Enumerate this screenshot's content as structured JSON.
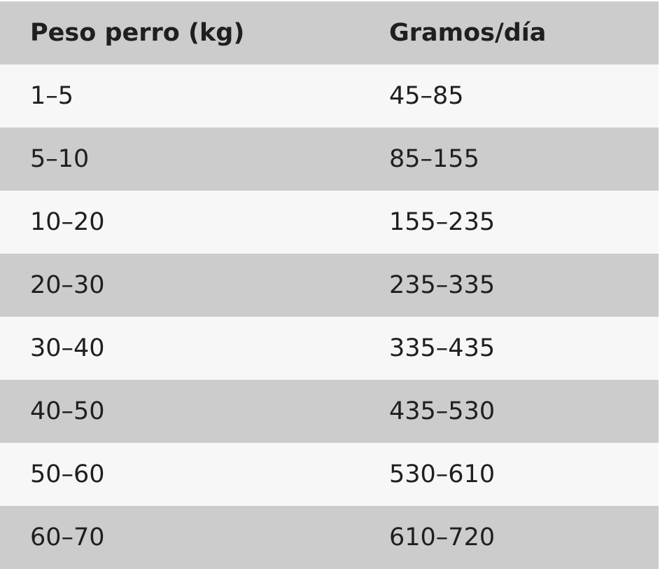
{
  "table": {
    "columns": [
      "Peso perro (kg)",
      "Gramos/día"
    ],
    "rows": [
      [
        "1–5",
        "45–85"
      ],
      [
        "5–10",
        "85–155"
      ],
      [
        "10–20",
        "155–235"
      ],
      [
        "20–30",
        "235–335"
      ],
      [
        "30–40",
        "335–435"
      ],
      [
        "40–50",
        "435–530"
      ],
      [
        "50–60",
        "530–610"
      ],
      [
        "60–70",
        "610–720"
      ]
    ]
  },
  "colors": {
    "header_bg": "#cccccc",
    "row_light": "#f7f7f7",
    "row_dark": "#cccccc",
    "text": "#1f1f1f"
  }
}
